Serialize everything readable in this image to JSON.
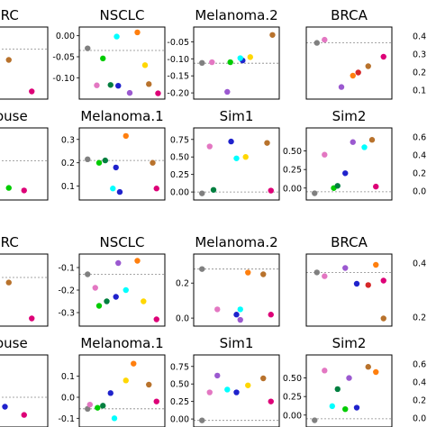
{
  "figure": {
    "palette": [
      "#808080",
      "#e377c2",
      "#ff00ff",
      "#00ffff",
      "#00cc00",
      "#007f3f",
      "#1f22cc",
      "#6a0dad",
      "#9b59d0",
      "#ff7f0e",
      "#b8722c",
      "#ffd700",
      "#e6e600",
      "#d62728",
      "#dd0077"
    ],
    "baseline_color": "#888888"
  },
  "chart_data": [
    {
      "type": "scatter",
      "title": "CRC",
      "yticks": [],
      "ylim": [
        0,
        1
      ],
      "baseline": 0.72,
      "points": [
        {
          "x": 0.08,
          "y": 0.8,
          "color": "#ff00ff"
        },
        {
          "x": 0.08,
          "y": 0.25,
          "color": "#1f22cc"
        },
        {
          "x": 0.55,
          "y": 0.55,
          "color": "#b8722c"
        },
        {
          "x": 0.85,
          "y": 0.05,
          "color": "#dd0077"
        }
      ]
    },
    {
      "type": "scatter",
      "title": "NSCLC",
      "yticks": [
        "0.00",
        "-0.05",
        "-0.10"
      ],
      "ylim": [
        -0.14,
        0.01
      ],
      "baseline": -0.035,
      "points": [
        {
          "x": 0.05,
          "y": -0.03,
          "color": "#808080"
        },
        {
          "x": 0.17,
          "y": -0.118,
          "color": "#e377c2"
        },
        {
          "x": 0.25,
          "y": -0.054,
          "color": "#00cc00"
        },
        {
          "x": 0.35,
          "y": -0.117,
          "color": "#007f3f"
        },
        {
          "x": 0.45,
          "y": -0.119,
          "color": "#1f22cc"
        },
        {
          "x": 0.43,
          "y": -0.002,
          "color": "#00ffff"
        },
        {
          "x": 0.6,
          "y": -0.136,
          "color": "#9b59d0"
        },
        {
          "x": 0.7,
          "y": 0.008,
          "color": "#ff7f0e"
        },
        {
          "x": 0.8,
          "y": -0.07,
          "color": "#ffd700"
        },
        {
          "x": 0.85,
          "y": -0.115,
          "color": "#b8722c"
        },
        {
          "x": 0.97,
          "y": -0.137,
          "color": "#dd0077"
        }
      ]
    },
    {
      "type": "scatter",
      "title": "Melanoma.2",
      "yticks": [
        "-0.05",
        "-0.10",
        "-0.15",
        "-0.20"
      ],
      "ylim": [
        -0.205,
        -0.02
      ],
      "baseline": -0.113,
      "points": [
        {
          "x": 0.05,
          "y": -0.112,
          "color": "#808080"
        },
        {
          "x": 0.18,
          "y": -0.11,
          "color": "#e377c2"
        },
        {
          "x": 0.42,
          "y": -0.11,
          "color": "#00cc00"
        },
        {
          "x": 0.58,
          "y": -0.105,
          "color": "#1f22cc"
        },
        {
          "x": 0.55,
          "y": -0.098,
          "color": "#00ffff"
        },
        {
          "x": 0.38,
          "y": -0.197,
          "color": "#9b59d0"
        },
        {
          "x": 0.68,
          "y": -0.095,
          "color": "#ffd700"
        },
        {
          "x": 0.97,
          "y": -0.03,
          "color": "#b8722c"
        }
      ]
    },
    {
      "type": "scatter",
      "title": "BRCA",
      "yticks": [],
      "ylim": [
        0,
        1
      ],
      "baseline": 0.82,
      "points": [
        {
          "x": 0.08,
          "y": 0.82,
          "color": "#808080"
        },
        {
          "x": 0.18,
          "y": 0.87,
          "color": "#e377c2"
        },
        {
          "x": 0.55,
          "y": 0.3,
          "color": "#ff7f0e"
        },
        {
          "x": 0.62,
          "y": 0.35,
          "color": "#d62728"
        },
        {
          "x": 0.4,
          "y": 0.12,
          "color": "#9b59d0"
        },
        {
          "x": 0.75,
          "y": 0.45,
          "color": "#b8722c"
        },
        {
          "x": 0.95,
          "y": 0.6,
          "color": "#dd0077"
        }
      ]
    },
    {
      "type": "scatter",
      "title": "mouse",
      "yticks": [],
      "ylim": [
        0,
        1
      ],
      "baseline": 0.55,
      "points": [
        {
          "x": 0.2,
          "y": 0.95,
          "color": "#ff7f0e"
        },
        {
          "x": 0.1,
          "y": 0.35,
          "color": "#00ffff"
        },
        {
          "x": 0.25,
          "y": 0.15,
          "color": "#1f22cc"
        },
        {
          "x": 0.55,
          "y": 0.12,
          "color": "#00cc00"
        },
        {
          "x": 0.75,
          "y": 0.08,
          "color": "#dd0077"
        }
      ]
    },
    {
      "type": "scatter",
      "title": "Melanoma.1",
      "yticks": [
        "0.3",
        "0.2",
        "0.1"
      ],
      "ylim": [
        0.06,
        0.33
      ],
      "baseline": 0.21,
      "points": [
        {
          "x": 0.05,
          "y": 0.215,
          "color": "#808080"
        },
        {
          "x": 0.2,
          "y": 0.2,
          "color": "#00cc00"
        },
        {
          "x": 0.28,
          "y": 0.21,
          "color": "#007f3f"
        },
        {
          "x": 0.42,
          "y": 0.18,
          "color": "#1f22cc"
        },
        {
          "x": 0.55,
          "y": 0.315,
          "color": "#ff7f0e"
        },
        {
          "x": 0.38,
          "y": 0.09,
          "color": "#00ffff"
        },
        {
          "x": 0.47,
          "y": 0.075,
          "color": "#1f22cc"
        },
        {
          "x": 0.9,
          "y": 0.2,
          "color": "#b8722c"
        },
        {
          "x": 0.95,
          "y": 0.09,
          "color": "#dd0077"
        }
      ]
    },
    {
      "type": "scatter",
      "title": "Sim1",
      "yticks": [
        "0.75",
        "0.50",
        "0.25",
        "0.00"
      ],
      "ylim": [
        -0.05,
        0.85
      ],
      "baseline": 0.0,
      "points": [
        {
          "x": 0.05,
          "y": -0.02,
          "color": "#808080"
        },
        {
          "x": 0.2,
          "y": 0.03,
          "color": "#007f3f"
        },
        {
          "x": 0.15,
          "y": 0.65,
          "color": "#e377c2"
        },
        {
          "x": 0.43,
          "y": 0.72,
          "color": "#1f22cc"
        },
        {
          "x": 0.5,
          "y": 0.48,
          "color": "#00ffff"
        },
        {
          "x": 0.62,
          "y": 0.5,
          "color": "#ffd700"
        },
        {
          "x": 0.9,
          "y": 0.7,
          "color": "#b8722c"
        },
        {
          "x": 0.95,
          "y": 0.02,
          "color": "#dd0077"
        }
      ]
    },
    {
      "type": "scatter",
      "title": "Sim2",
      "yticks": [
        "0.50",
        "0.25",
        "0.00"
      ],
      "ylim": [
        -0.1,
        0.75
      ],
      "baseline": -0.05,
      "points": [
        {
          "x": 0.05,
          "y": -0.07,
          "color": "#808080"
        },
        {
          "x": 0.18,
          "y": 0.45,
          "color": "#e377c2"
        },
        {
          "x": 0.3,
          "y": 0.0,
          "color": "#00cc00"
        },
        {
          "x": 0.35,
          "y": 0.03,
          "color": "#007f3f"
        },
        {
          "x": 0.45,
          "y": 0.2,
          "color": "#1f22cc"
        },
        {
          "x": 0.55,
          "y": 0.62,
          "color": "#9b59d0"
        },
        {
          "x": 0.7,
          "y": 0.55,
          "color": "#00ffff"
        },
        {
          "x": 0.8,
          "y": 0.65,
          "color": "#b8722c"
        },
        {
          "x": 0.85,
          "y": 0.02,
          "color": "#dd0077"
        }
      ]
    },
    {
      "type": "scatter",
      "title": "CRC",
      "yticks": [],
      "ylim": [
        0,
        1
      ],
      "baseline": 0.7,
      "points": [
        {
          "x": 0.08,
          "y": 0.78,
          "color": "#ff7f0e"
        },
        {
          "x": 0.15,
          "y": 0.7,
          "color": "#1f22cc"
        },
        {
          "x": 0.2,
          "y": 0.55,
          "color": "#ff00ff"
        },
        {
          "x": 0.35,
          "y": 0.45,
          "color": "#e6e600"
        },
        {
          "x": 0.55,
          "y": 0.62,
          "color": "#b8722c"
        },
        {
          "x": 0.85,
          "y": 0.05,
          "color": "#dd0077"
        }
      ]
    },
    {
      "type": "scatter",
      "title": "NSCLC",
      "yticks": [
        "-0.1",
        "-0.2",
        "-0.3"
      ],
      "ylim": [
        -0.34,
        -0.06
      ],
      "baseline": -0.13,
      "points": [
        {
          "x": 0.05,
          "y": -0.13,
          "color": "#808080"
        },
        {
          "x": 0.15,
          "y": -0.19,
          "color": "#e377c2"
        },
        {
          "x": 0.2,
          "y": -0.27,
          "color": "#00cc00"
        },
        {
          "x": 0.3,
          "y": -0.25,
          "color": "#007f3f"
        },
        {
          "x": 0.42,
          "y": -0.23,
          "color": "#1f22cc"
        },
        {
          "x": 0.45,
          "y": -0.08,
          "color": "#9b59d0"
        },
        {
          "x": 0.55,
          "y": -0.2,
          "color": "#00ffff"
        },
        {
          "x": 0.7,
          "y": -0.07,
          "color": "#ff7f0e"
        },
        {
          "x": 0.78,
          "y": -0.25,
          "color": "#ffd700"
        },
        {
          "x": 0.95,
          "y": -0.33,
          "color": "#dd0077"
        }
      ]
    },
    {
      "type": "scatter",
      "title": "Melanoma.2",
      "yticks": [
        "0.2",
        "0.0"
      ],
      "ylim": [
        -0.02,
        0.34
      ],
      "baseline": 0.28,
      "points": [
        {
          "x": 0.05,
          "y": 0.28,
          "color": "#808080"
        },
        {
          "x": 0.25,
          "y": 0.05,
          "color": "#e377c2"
        },
        {
          "x": 0.5,
          "y": 0.02,
          "color": "#1f22cc"
        },
        {
          "x": 0.55,
          "y": 0.05,
          "color": "#00ffff"
        },
        {
          "x": 0.65,
          "y": 0.26,
          "color": "#ff7f0e"
        },
        {
          "x": 0.55,
          "y": -0.01,
          "color": "#9b59d0"
        },
        {
          "x": 0.85,
          "y": 0.25,
          "color": "#b8722c"
        },
        {
          "x": 0.95,
          "y": 0.02,
          "color": "#dd0077"
        }
      ]
    },
    {
      "type": "scatter",
      "title": "BRCA",
      "yticks": [],
      "ylim": [
        0,
        1
      ],
      "baseline": 0.78,
      "points": [
        {
          "x": 0.08,
          "y": 0.78,
          "color": "#808080"
        },
        {
          "x": 0.18,
          "y": 0.72,
          "color": "#e377c2"
        },
        {
          "x": 0.45,
          "y": 0.85,
          "color": "#9b59d0"
        },
        {
          "x": 0.6,
          "y": 0.6,
          "color": "#1f22cc"
        },
        {
          "x": 0.75,
          "y": 0.58,
          "color": "#d62728"
        },
        {
          "x": 0.85,
          "y": 0.9,
          "color": "#ff7f0e"
        },
        {
          "x": 0.95,
          "y": 0.65,
          "color": "#dd0077"
        },
        {
          "x": 0.95,
          "y": 0.05,
          "color": "#b8722c"
        }
      ]
    },
    {
      "type": "scatter",
      "title": "mouse",
      "yticks": [],
      "ylim": [
        0,
        1
      ],
      "baseline": 0.4,
      "points": [
        {
          "x": 0.08,
          "y": 0.85,
          "color": "#ff7f0e"
        },
        {
          "x": 0.15,
          "y": 0.72,
          "color": "#00ffff"
        },
        {
          "x": 0.08,
          "y": 0.55,
          "color": "#e377c2"
        },
        {
          "x": 0.25,
          "y": 0.35,
          "color": "#9b59d0"
        },
        {
          "x": 0.5,
          "y": 0.25,
          "color": "#1f22cc"
        },
        {
          "x": 0.75,
          "y": 0.12,
          "color": "#dd0077"
        }
      ]
    },
    {
      "type": "scatter",
      "title": "Melanoma.1",
      "yticks": [
        "0.1",
        "0.0",
        "-0.1"
      ],
      "ylim": [
        -0.12,
        0.18
      ],
      "baseline": -0.055,
      "points": [
        {
          "x": 0.05,
          "y": -0.055,
          "color": "#808080"
        },
        {
          "x": 0.08,
          "y": -0.035,
          "color": "#e377c2"
        },
        {
          "x": 0.18,
          "y": -0.05,
          "color": "#00cc00"
        },
        {
          "x": 0.25,
          "y": -0.04,
          "color": "#007f3f"
        },
        {
          "x": 0.35,
          "y": 0.02,
          "color": "#1f22cc"
        },
        {
          "x": 0.4,
          "y": -0.1,
          "color": "#00ffff"
        },
        {
          "x": 0.55,
          "y": 0.08,
          "color": "#ffd700"
        },
        {
          "x": 0.65,
          "y": 0.16,
          "color": "#ff7f0e"
        },
        {
          "x": 0.85,
          "y": 0.06,
          "color": "#b8722c"
        },
        {
          "x": 0.95,
          "y": -0.02,
          "color": "#dd0077"
        }
      ]
    },
    {
      "type": "scatter",
      "title": "Sim1",
      "yticks": [
        "0.75",
        "0.50",
        "0.25",
        "0.00"
      ],
      "ylim": [
        -0.05,
        0.85
      ],
      "baseline": -0.02,
      "points": [
        {
          "x": 0.05,
          "y": -0.02,
          "color": "#808080"
        },
        {
          "x": 0.15,
          "y": 0.38,
          "color": "#e377c2"
        },
        {
          "x": 0.25,
          "y": 0.62,
          "color": "#9b59d0"
        },
        {
          "x": 0.38,
          "y": 0.42,
          "color": "#00ffff"
        },
        {
          "x": 0.5,
          "y": 0.38,
          "color": "#1f22cc"
        },
        {
          "x": 0.65,
          "y": 0.48,
          "color": "#ffd700"
        },
        {
          "x": 0.85,
          "y": 0.58,
          "color": "#b8722c"
        },
        {
          "x": 0.95,
          "y": 0.25,
          "color": "#dd0077"
        }
      ]
    },
    {
      "type": "scatter",
      "title": "Sim2",
      "yticks": [
        "0.50",
        "0.25",
        "0.00"
      ],
      "ylim": [
        -0.1,
        0.75
      ],
      "baseline": -0.05,
      "points": [
        {
          "x": 0.05,
          "y": -0.07,
          "color": "#808080"
        },
        {
          "x": 0.18,
          "y": 0.6,
          "color": "#e377c2"
        },
        {
          "x": 0.28,
          "y": 0.12,
          "color": "#00ffff"
        },
        {
          "x": 0.35,
          "y": 0.35,
          "color": "#007f3f"
        },
        {
          "x": 0.45,
          "y": 0.08,
          "color": "#00cc00"
        },
        {
          "x": 0.5,
          "y": 0.5,
          "color": "#9b59d0"
        },
        {
          "x": 0.6,
          "y": 0.1,
          "color": "#1f22cc"
        },
        {
          "x": 0.75,
          "y": 0.65,
          "color": "#b8722c"
        },
        {
          "x": 0.85,
          "y": 0.58,
          "color": "#ff7f0e"
        }
      ]
    }
  ],
  "right_edge_ticks": [
    [
      "0.4",
      "0.3",
      "0.2",
      "0.1"
    ],
    [
      "0.6",
      "0.4",
      "0.2",
      "0.0"
    ],
    [
      "0.4",
      "0.2"
    ],
    [
      "0.6",
      "0.4",
      "0.2",
      "0.0"
    ]
  ]
}
